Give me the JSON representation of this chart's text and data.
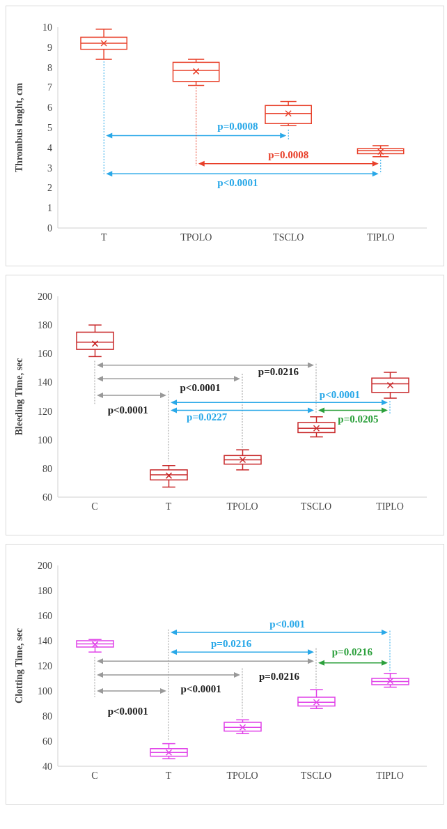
{
  "chart_data": [
    {
      "type": "box",
      "ylabel": "Thrombus lenght, cm",
      "categories": [
        "T",
        "TPOLO",
        "TSCLO",
        "TIPLO"
      ],
      "color": "#e8402a",
      "ylim": [
        0,
        10
      ],
      "yticks": [
        0,
        1,
        2,
        3,
        4,
        5,
        6,
        7,
        8,
        9,
        10
      ],
      "boxes": [
        {
          "low": 8.4,
          "q1": 8.9,
          "median": 9.2,
          "q3": 9.5,
          "high": 9.9,
          "mean": 9.2
        },
        {
          "low": 7.1,
          "q1": 7.3,
          "median": 7.85,
          "q3": 8.25,
          "high": 8.4,
          "mean": 7.8
        },
        {
          "low": 5.1,
          "q1": 5.2,
          "median": 5.7,
          "q3": 6.1,
          "high": 6.3,
          "mean": 5.7
        },
        {
          "low": 3.55,
          "q1": 3.7,
          "median": 3.85,
          "q3": 3.95,
          "high": 4.1,
          "mean": 3.8
        }
      ],
      "annotations": [
        "p=0.0008",
        "p=0.0008",
        "p<0.0001"
      ]
    },
    {
      "type": "box",
      "ylabel": "Bleeding Time, sec",
      "categories": [
        "C",
        "T",
        "TPOLO",
        "TSCLO",
        "TIPLO"
      ],
      "color": "#c8282a",
      "ylim": [
        60,
        200
      ],
      "yticks": [
        60,
        80,
        100,
        120,
        140,
        160,
        180,
        200
      ],
      "boxes": [
        {
          "low": 158,
          "q1": 163,
          "median": 168,
          "q3": 175,
          "high": 180,
          "mean": 167
        },
        {
          "low": 67,
          "q1": 72,
          "median": 75.5,
          "q3": 79,
          "high": 82,
          "mean": 75
        },
        {
          "low": 79,
          "q1": 83,
          "median": 86,
          "q3": 89,
          "high": 93,
          "mean": 86
        },
        {
          "low": 102,
          "q1": 105,
          "median": 108,
          "q3": 112,
          "high": 116,
          "mean": 108
        },
        {
          "low": 129,
          "q1": 133,
          "median": 139,
          "q3": 143,
          "high": 147,
          "mean": 138
        }
      ],
      "annotations": [
        "p=0.0216",
        "p<0.0001",
        "p<0.0001",
        "p<0.0001",
        "p=0.0227",
        "p=0.0205"
      ]
    },
    {
      "type": "box",
      "ylabel": "Clotting Time, sec",
      "categories": [
        "C",
        "T",
        "TPOLO",
        "TSCLO",
        "TIPLO"
      ],
      "color": "#e040e8",
      "ylim": [
        40,
        200
      ],
      "yticks": [
        40,
        60,
        80,
        100,
        120,
        140,
        160,
        180,
        200
      ],
      "boxes": [
        {
          "low": 131,
          "q1": 135,
          "median": 137.5,
          "q3": 140,
          "high": 141,
          "mean": 137
        },
        {
          "low": 46,
          "q1": 48,
          "median": 51,
          "q3": 54,
          "high": 58,
          "mean": 51
        },
        {
          "low": 66,
          "q1": 68,
          "median": 71,
          "q3": 75,
          "high": 77,
          "mean": 71
        },
        {
          "low": 86,
          "q1": 88,
          "median": 91,
          "q3": 95,
          "high": 101,
          "mean": 91
        },
        {
          "low": 103,
          "q1": 105,
          "median": 107.5,
          "q3": 110,
          "high": 114,
          "mean": 108
        }
      ],
      "annotations": [
        "p<0.001",
        "p=0.0216",
        "p=0.0216",
        "p=0.0216",
        "p<0.0001",
        "p<0.0001"
      ]
    }
  ]
}
